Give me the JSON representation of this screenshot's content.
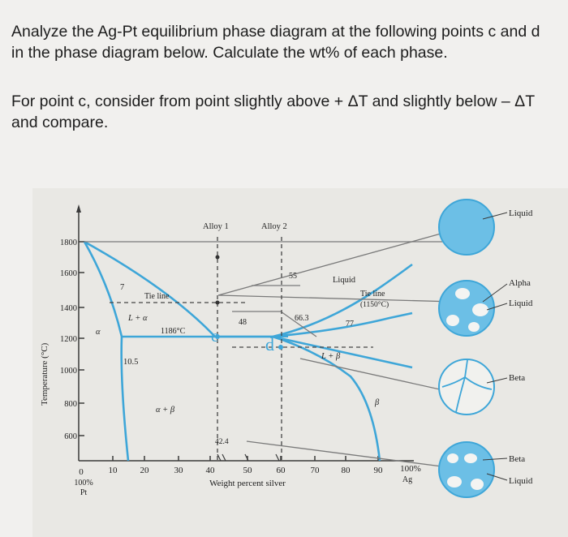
{
  "question": {
    "line1": "Analyze the Ag-Pt equilibrium phase diagram at the following points c and d in the phase diagram below. Calculate the wt% of each phase.",
    "line2": "For point c, consider from point slightly above + ΔT and slightly below – ΔT and compare."
  },
  "diagram": {
    "y_axis_label": "Temperature (°C)",
    "y_ticks": [
      "1800",
      "1600",
      "1400",
      "1200",
      "1000",
      "800",
      "600"
    ],
    "x_ticks": [
      "0",
      "10",
      "20",
      "30",
      "40",
      "50",
      "60",
      "70",
      "80",
      "90",
      "100%"
    ],
    "x_left_end": [
      "100%",
      "Pt"
    ],
    "x_right_end": "Ag",
    "x_axis_label": "Weight percent silver",
    "alloy1": "Alloy 1",
    "alloy2": "Alloy 2",
    "tie_line_left": "Tie line",
    "tie_line_right": "Tie line",
    "tie_line_right_temp": "(1150°C)",
    "liquid_region": "Liquid",
    "l_alpha": "L + α",
    "l_beta": "L + β",
    "alpha_beta": "α + β",
    "alpha": "α",
    "beta": "β",
    "iso_1186": "1186°C",
    "val_7": "7",
    "val_10_5": "10.5",
    "val_42_4": "42.4",
    "val_48": "48",
    "val_55": "55",
    "val_66_3": "66.3",
    "val_77": "77",
    "point_c": "c",
    "point_d": "d",
    "legend": {
      "liquid": "Liquid",
      "alpha": "Alpha",
      "alpha_liquid": "Liquid",
      "beta": "Beta",
      "beta2": "Beta",
      "beta_liquid": "Liquid"
    },
    "colors": {
      "phase_line": "#3ea6d8",
      "fill_blue": "#6cbfe6",
      "axis": "#3a3a3a",
      "background": "#e9e8e4"
    }
  }
}
